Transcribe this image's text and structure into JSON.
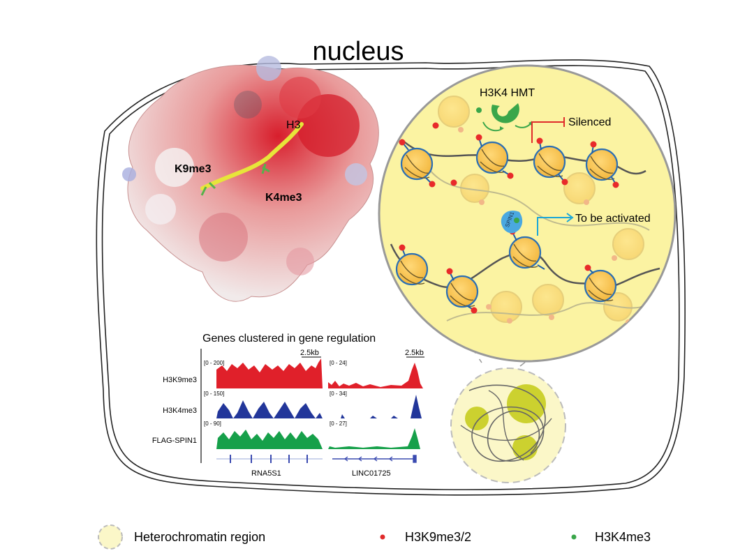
{
  "title": "nucleus",
  "structure": {
    "h3_label": "H3",
    "k9_label": "K9me3",
    "k4_label": "K4me3"
  },
  "zoom": {
    "hmt_label": "H3K4 HMT",
    "silenced_label": "Silenced",
    "spin1_label": "SPIN1",
    "activated_label": "To be activated"
  },
  "tracks": {
    "heading": "Genes clustered in gene regulation",
    "scale_left": "2.5kb",
    "scale_right": "2.5kb",
    "rows": [
      {
        "name": "H3K9me3",
        "range_left": "[0 - 200]",
        "range_right": "[0 - 24]",
        "color": "#e0202a"
      },
      {
        "name": "H3K4me3",
        "range_left": "[0 - 150]",
        "range_right": "[0 - 34]",
        "color": "#22369a"
      },
      {
        "name": "FLAG-SPIN1",
        "range_left": "[0 - 90]",
        "range_right": "[0 - 27]",
        "color": "#16a04a"
      }
    ],
    "gene_left": "RNA5S1",
    "gene_right": "LINC01725"
  },
  "legend": {
    "items": [
      {
        "label": "Heterochromatin region",
        "icon": "dashed-circle-icon",
        "color": "#fbf7c8"
      },
      {
        "label": "H3K9me3/2",
        "icon": "red-dot-icon",
        "color": "#e02a2a"
      },
      {
        "label": "H3K4me3",
        "icon": "green-dot-icon",
        "color": "#3aa64a"
      }
    ]
  }
}
